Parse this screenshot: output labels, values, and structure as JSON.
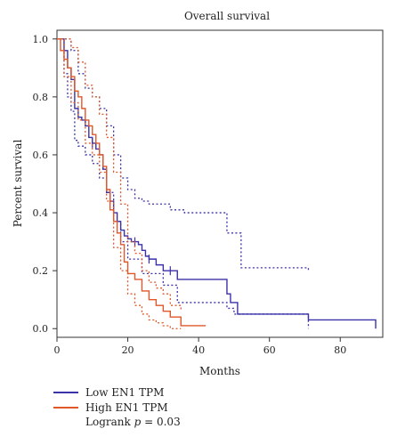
{
  "chart_data": {
    "type": "line",
    "subtype": "kaplan-meier",
    "title": "Overall survival",
    "xlabel": "Months",
    "ylabel": "Percent survival",
    "xlim": [
      0,
      92
    ],
    "ylim": [
      -0.03,
      1.03
    ],
    "xticks": [
      0,
      20,
      40,
      60,
      80
    ],
    "yticks": [
      0.0,
      0.2,
      0.4,
      0.6,
      0.8,
      1.0
    ],
    "grid": false,
    "legend_position": "below",
    "colors": {
      "low": "#3b32a8",
      "high": "#e0572a"
    },
    "series": [
      {
        "name": "Low EN1 TPM",
        "color": "#3b32a8",
        "style": "step",
        "x": [
          0,
          2,
          3,
          4,
          5,
          6,
          7,
          8,
          9,
          10,
          11,
          12,
          13,
          14,
          15,
          16,
          17,
          18,
          19,
          20,
          21,
          22,
          23,
          24,
          25,
          26,
          28,
          30,
          34,
          48,
          49,
          51,
          71,
          90
        ],
        "y": [
          1.0,
          0.96,
          0.9,
          0.86,
          0.76,
          0.73,
          0.72,
          0.7,
          0.66,
          0.64,
          0.62,
          0.6,
          0.55,
          0.47,
          0.44,
          0.4,
          0.37,
          0.34,
          0.32,
          0.31,
          0.3,
          0.3,
          0.29,
          0.27,
          0.25,
          0.24,
          0.22,
          0.2,
          0.17,
          0.12,
          0.09,
          0.05,
          0.03,
          0.0
        ],
        "upper_ci": {
          "x": [
            0,
            2,
            4,
            6,
            8,
            10,
            12,
            14,
            16,
            18,
            20,
            22,
            24,
            26,
            28,
            32,
            36,
            48,
            52,
            71
          ],
          "y": [
            1.0,
            1.0,
            0.96,
            0.88,
            0.83,
            0.8,
            0.76,
            0.7,
            0.6,
            0.52,
            0.48,
            0.45,
            0.44,
            0.43,
            0.43,
            0.41,
            0.4,
            0.33,
            0.21,
            0.2
          ]
        },
        "lower_ci": {
          "x": [
            0,
            2,
            3,
            4,
            5,
            6,
            8,
            10,
            12,
            14,
            16,
            18,
            20,
            24,
            30,
            34,
            48,
            50,
            71
          ],
          "y": [
            1.0,
            0.88,
            0.8,
            0.75,
            0.65,
            0.63,
            0.6,
            0.57,
            0.52,
            0.47,
            0.37,
            0.3,
            0.24,
            0.19,
            0.15,
            0.09,
            0.07,
            0.05,
            0.0
          ]
        },
        "censor_x": [
          10,
          22,
          26,
          32
        ]
      },
      {
        "name": "High EN1 TPM",
        "color": "#e0572a",
        "style": "step",
        "x": [
          0,
          1,
          2,
          3,
          4,
          5,
          6,
          7,
          8,
          9,
          10,
          11,
          12,
          13,
          14,
          15,
          16,
          17,
          18,
          19,
          20,
          22,
          24,
          26,
          28,
          30,
          32,
          35,
          42
        ],
        "y": [
          1.0,
          0.96,
          0.93,
          0.9,
          0.87,
          0.82,
          0.8,
          0.76,
          0.72,
          0.7,
          0.67,
          0.64,
          0.6,
          0.56,
          0.48,
          0.41,
          0.37,
          0.33,
          0.29,
          0.23,
          0.19,
          0.17,
          0.13,
          0.1,
          0.08,
          0.06,
          0.04,
          0.01,
          0.01
        ],
        "upper_ci": {
          "x": [
            0,
            2,
            4,
            6,
            8,
            10,
            12,
            14,
            16,
            18,
            20,
            22,
            24,
            26,
            28,
            30,
            32,
            35
          ],
          "y": [
            1.0,
            1.0,
            0.97,
            0.92,
            0.84,
            0.8,
            0.74,
            0.66,
            0.54,
            0.43,
            0.3,
            0.26,
            0.2,
            0.16,
            0.14,
            0.12,
            0.08,
            0.06
          ]
        },
        "lower_ci": {
          "x": [
            0,
            2,
            4,
            6,
            8,
            10,
            12,
            14,
            16,
            18,
            20,
            22,
            24,
            26,
            28,
            30,
            32,
            35
          ],
          "y": [
            1.0,
            0.87,
            0.78,
            0.72,
            0.64,
            0.6,
            0.54,
            0.44,
            0.28,
            0.2,
            0.12,
            0.08,
            0.05,
            0.03,
            0.02,
            0.01,
            0.0,
            0.0
          ]
        },
        "censor_x": []
      }
    ],
    "annotation": {
      "label": "Logrank",
      "stat_symbol": "p",
      "stat_value": "= 0.03"
    }
  },
  "legend": {
    "items": [
      {
        "label": "Low EN1 TPM",
        "color": "#3b32a8"
      },
      {
        "label": "High EN1 TPM",
        "color": "#e0572a"
      }
    ],
    "stat_label": "Logrank",
    "stat_symbol": "p",
    "stat_value": "= 0.03"
  }
}
